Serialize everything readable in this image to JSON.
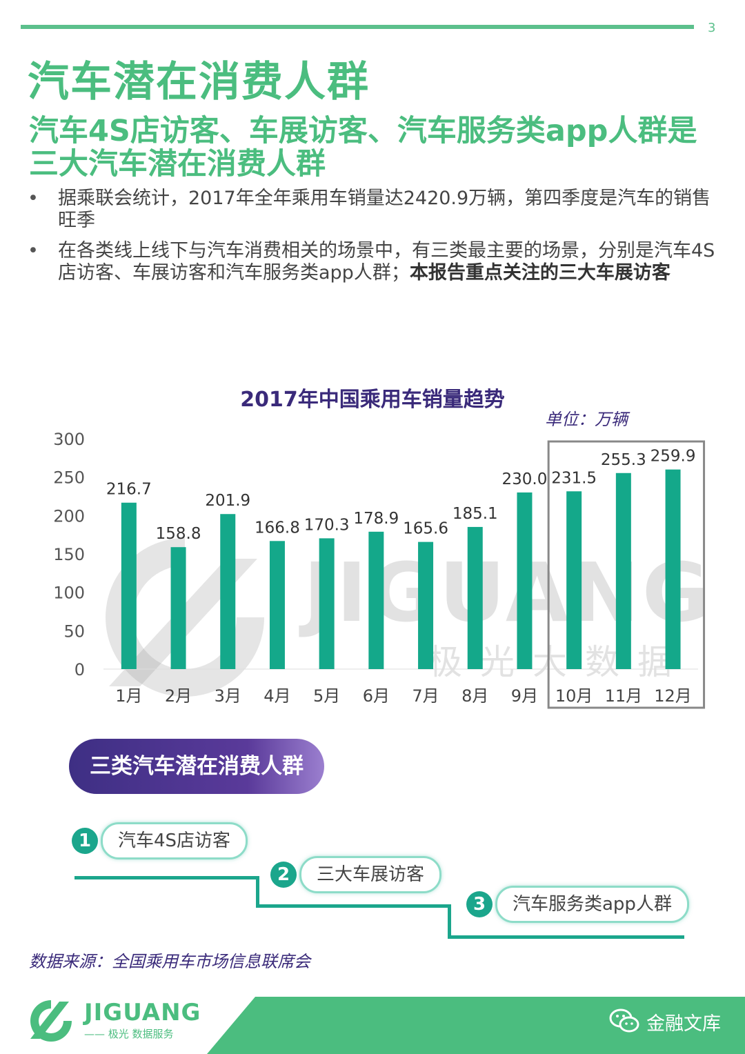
{
  "page_number": "3",
  "title": "汽车潜在消费人群",
  "subtitle": "汽车4S店访客、车展访客、汽车服务类app人群是三大汽车潜在消费人群",
  "bullets": [
    {
      "dot": "•",
      "text": "据乘联会统计，2017年全年乘用车销量达2420.9万辆，第四季度是汽车的销售旺季",
      "bold": ""
    },
    {
      "dot": "•",
      "text": "在各类线上线下与汽车消费相关的场景中，有三类最主要的场景，分别是汽车4S店访客、车展访客和汽车服务类app人群；",
      "bold": "本报告重点关注的三大车展访客"
    }
  ],
  "chart_data": {
    "type": "bar",
    "title": "2017年中国乘用车销量趋势",
    "unit": "单位：万辆",
    "categories": [
      "1月",
      "2月",
      "3月",
      "4月",
      "5月",
      "6月",
      "7月",
      "8月",
      "9月",
      "10月",
      "11月",
      "12月"
    ],
    "values": [
      216.7,
      158.8,
      201.9,
      166.8,
      170.3,
      178.9,
      165.6,
      185.1,
      230.0,
      231.5,
      255.3,
      259.9
    ],
    "value_labels": [
      "216.7",
      "158.8",
      "201.9",
      "166.8",
      "170.3",
      "178.9",
      "165.6",
      "185.1",
      "230.0",
      "231.5",
      "255.3",
      "259.9"
    ],
    "yticks": [
      0,
      50,
      100,
      150,
      200,
      250,
      300
    ],
    "ylim": [
      0,
      300
    ],
    "highlight_categories": [
      "10月",
      "11月",
      "12月"
    ],
    "bar_color": "#14a88a",
    "grid": false,
    "legend": "none"
  },
  "watermark": {
    "text": "JIGUANG",
    "sub": "极光大数据"
  },
  "groups": {
    "heading": "三类汽车潜在消费人群",
    "items": [
      {
        "num": "1",
        "label": "汽车4S店访客"
      },
      {
        "num": "2",
        "label": "三大车展访客"
      },
      {
        "num": "3",
        "label": "汽车服务类app人群"
      }
    ]
  },
  "source": "数据来源：全国乘用车市场信息联席会",
  "footer": {
    "brand": "JIGUANG",
    "brand_sub": "—— 极光 数据服务",
    "wechat_name": "金融文库"
  },
  "colors": {
    "accent_green": "#4bbd7f",
    "bar_teal": "#14a88a",
    "purple": "#3e2f84"
  }
}
